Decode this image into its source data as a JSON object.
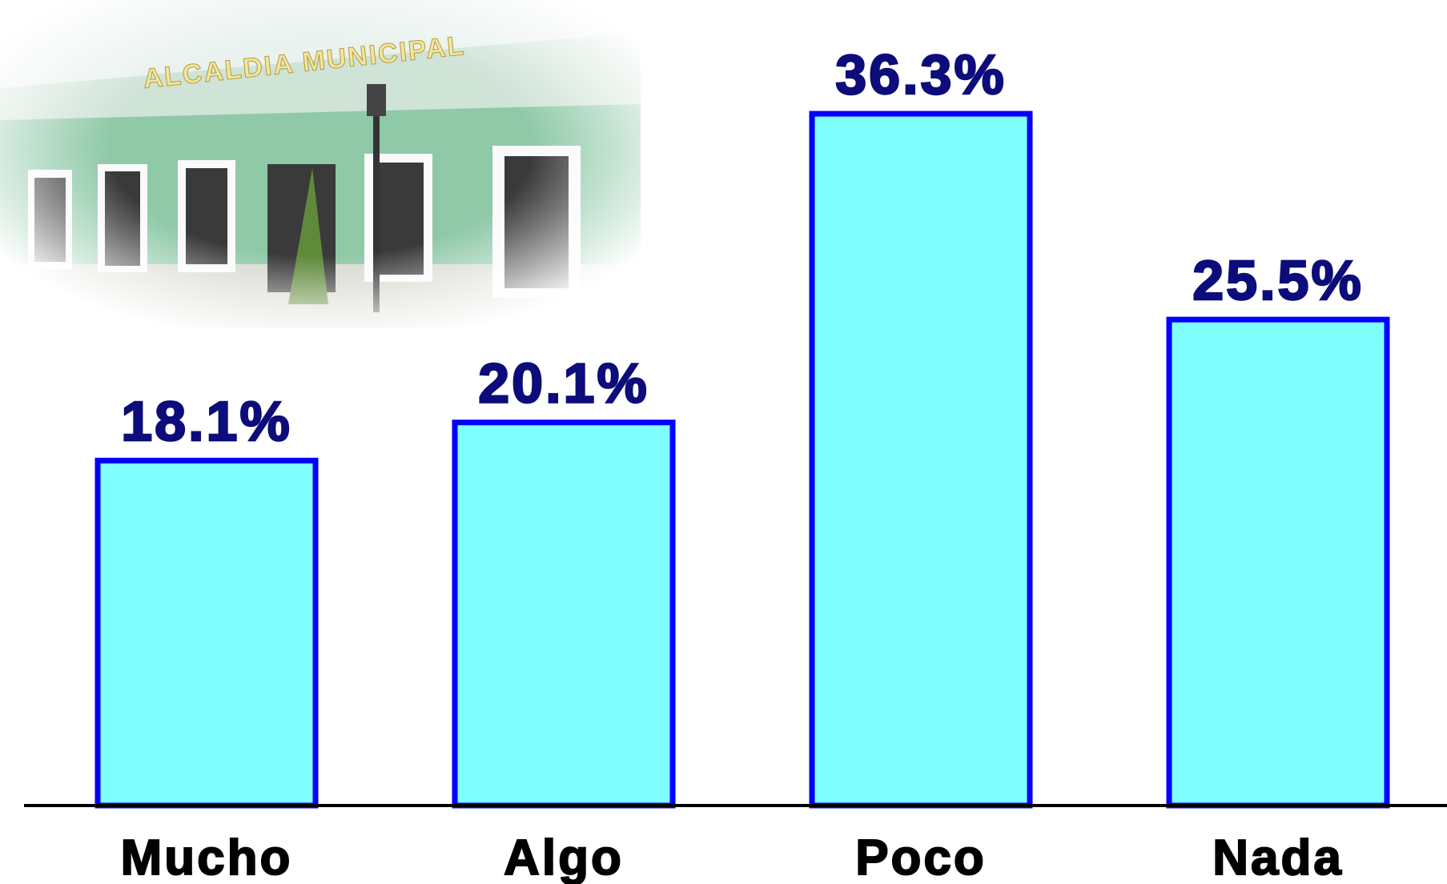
{
  "chart_data": {
    "type": "bar",
    "annotations": [
      "ALCALDIA MUNICIPAL"
    ],
    "categories": [
      "Mucho",
      "Algo",
      "Poco",
      "Nada"
    ],
    "values": [
      18.1,
      20.1,
      36.3,
      25.5
    ],
    "value_labels": [
      "18.1%",
      "20.1%",
      "36.3%",
      "25.5%"
    ],
    "color": "#80ffff",
    "edge_color": "#0000ff",
    "ylim": [
      0,
      40
    ]
  }
}
